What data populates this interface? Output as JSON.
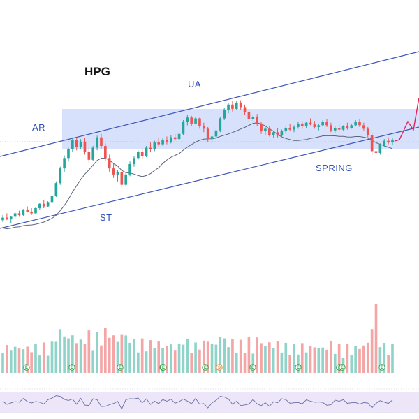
{
  "chart_data": {
    "type": "candlestick",
    "title": "HPG",
    "colors": {
      "up": "#26a69a",
      "down": "#ef5350",
      "up_volume": "#8fd3c9",
      "down_volume": "#f4a5a5",
      "range_box": "#c9d7fb",
      "channel": "#3d55b8",
      "ma": "#5a6478",
      "projection": "#e3245b",
      "oscillator": "#6a6fa0",
      "oscillator_band": "#ece6f8"
    },
    "annotations": [
      {
        "label": "AR"
      },
      {
        "label": "ST"
      },
      {
        "label": "UA"
      },
      {
        "label": "SPRING"
      }
    ],
    "event_markers": [
      "E",
      "E",
      "E",
      "E",
      "E",
      "E",
      "S",
      "E",
      "E",
      "E",
      "E",
      "E",
      "E"
    ],
    "candles": [
      [
        24.0,
        24.6,
        23.8,
        24.3
      ],
      [
        24.3,
        24.8,
        24.0,
        24.1
      ],
      [
        24.1,
        24.5,
        23.7,
        24.4
      ],
      [
        24.4,
        25.0,
        24.2,
        24.8
      ],
      [
        24.8,
        25.1,
        24.4,
        24.6
      ],
      [
        24.6,
        25.3,
        24.5,
        25.2
      ],
      [
        25.2,
        25.6,
        24.9,
        25.0
      ],
      [
        25.0,
        25.4,
        24.6,
        24.8
      ],
      [
        24.8,
        25.5,
        24.7,
        25.4
      ],
      [
        25.4,
        26.0,
        25.2,
        25.9
      ],
      [
        25.9,
        26.3,
        25.4,
        25.6
      ],
      [
        25.6,
        26.2,
        25.5,
        26.1
      ],
      [
        26.1,
        27.0,
        26.0,
        26.8
      ],
      [
        26.8,
        28.5,
        26.7,
        28.3
      ],
      [
        28.3,
        30.2,
        28.1,
        30.0
      ],
      [
        30.0,
        31.5,
        29.6,
        31.2
      ],
      [
        31.2,
        32.4,
        30.8,
        32.2
      ],
      [
        32.2,
        33.6,
        31.9,
        33.3
      ],
      [
        33.3,
        33.6,
        32.1,
        32.5
      ],
      [
        32.5,
        33.4,
        32.2,
        33.1
      ],
      [
        33.1,
        33.5,
        31.6,
        31.9
      ],
      [
        31.9,
        32.4,
        30.6,
        31.0
      ],
      [
        31.0,
        32.6,
        30.9,
        32.4
      ],
      [
        32.4,
        33.8,
        32.1,
        33.6
      ],
      [
        33.6,
        34.0,
        32.3,
        32.6
      ],
      [
        32.6,
        32.9,
        30.8,
        31.2
      ],
      [
        31.2,
        31.6,
        29.6,
        30.0
      ],
      [
        30.0,
        30.6,
        28.9,
        29.3
      ],
      [
        29.3,
        29.8,
        28.5,
        29.6
      ],
      [
        29.6,
        29.9,
        27.8,
        28.1
      ],
      [
        28.1,
        29.5,
        27.9,
        29.3
      ],
      [
        29.3,
        30.8,
        29.1,
        30.5
      ],
      [
        30.5,
        31.4,
        30.2,
        31.2
      ],
      [
        31.2,
        32.1,
        31.0,
        31.9
      ],
      [
        31.9,
        32.3,
        31.1,
        31.4
      ],
      [
        31.4,
        32.6,
        31.3,
        32.4
      ],
      [
        32.4,
        33.0,
        31.9,
        32.2
      ],
      [
        32.2,
        33.2,
        32.0,
        33.0
      ],
      [
        33.0,
        33.6,
        32.5,
        32.8
      ],
      [
        32.8,
        33.5,
        32.6,
        33.3
      ],
      [
        33.3,
        33.7,
        32.8,
        33.1
      ],
      [
        33.1,
        33.9,
        32.9,
        33.6
      ],
      [
        33.6,
        34.0,
        33.2,
        33.4
      ],
      [
        33.4,
        34.2,
        33.3,
        34.0
      ],
      [
        34.0,
        35.6,
        33.9,
        35.4
      ],
      [
        35.4,
        36.2,
        35.0,
        35.9
      ],
      [
        35.9,
        36.1,
        34.9,
        35.2
      ],
      [
        35.2,
        36.0,
        35.1,
        35.8
      ],
      [
        35.8,
        35.9,
        34.6,
        34.9
      ],
      [
        34.9,
        35.3,
        34.2,
        34.6
      ],
      [
        34.6,
        34.8,
        33.1,
        33.4
      ],
      [
        33.4,
        33.9,
        32.9,
        33.7
      ],
      [
        33.7,
        34.6,
        33.5,
        34.4
      ],
      [
        34.4,
        36.0,
        34.2,
        35.8
      ],
      [
        35.8,
        37.0,
        35.6,
        36.8
      ],
      [
        36.8,
        37.6,
        36.4,
        37.4
      ],
      [
        37.4,
        37.8,
        36.6,
        36.9
      ],
      [
        36.9,
        37.8,
        36.8,
        37.6
      ],
      [
        37.6,
        37.9,
        36.8,
        37.1
      ],
      [
        37.1,
        37.4,
        36.2,
        36.5
      ],
      [
        36.5,
        36.7,
        35.4,
        35.7
      ],
      [
        35.7,
        36.2,
        35.5,
        36.0
      ],
      [
        36.0,
        36.3,
        34.9,
        35.2
      ],
      [
        35.2,
        35.4,
        34.0,
        34.3
      ],
      [
        34.3,
        34.8,
        33.9,
        34.6
      ],
      [
        34.6,
        34.9,
        33.7,
        33.9
      ],
      [
        33.9,
        34.4,
        33.5,
        34.2
      ],
      [
        34.2,
        34.7,
        33.6,
        33.8
      ],
      [
        33.8,
        34.5,
        33.7,
        34.3
      ],
      [
        34.3,
        34.9,
        34.0,
        34.7
      ],
      [
        34.7,
        35.2,
        34.3,
        34.5
      ],
      [
        34.5,
        35.0,
        34.2,
        34.8
      ],
      [
        34.8,
        35.4,
        34.6,
        35.2
      ],
      [
        35.2,
        35.5,
        34.6,
        34.9
      ],
      [
        34.9,
        35.4,
        34.7,
        35.3
      ],
      [
        35.3,
        35.8,
        35.0,
        35.1
      ],
      [
        35.1,
        35.5,
        34.6,
        34.8
      ],
      [
        34.8,
        35.2,
        34.4,
        35.0
      ],
      [
        35.0,
        35.6,
        34.9,
        35.4
      ],
      [
        35.4,
        35.7,
        34.8,
        35.0
      ],
      [
        35.0,
        35.3,
        34.2,
        34.4
      ],
      [
        34.4,
        34.9,
        34.1,
        34.7
      ],
      [
        34.7,
        35.1,
        34.3,
        34.5
      ],
      [
        34.5,
        35.0,
        34.4,
        34.9
      ],
      [
        34.9,
        35.3,
        34.5,
        34.7
      ],
      [
        34.7,
        35.2,
        34.6,
        35.0
      ],
      [
        35.0,
        35.6,
        34.9,
        35.4
      ],
      [
        35.4,
        35.7,
        34.8,
        35.0
      ],
      [
        35.0,
        35.3,
        34.4,
        34.6
      ],
      [
        34.6,
        34.8,
        33.6,
        33.9
      ],
      [
        33.9,
        34.1,
        31.5,
        32.0
      ],
      [
        32.0,
        32.6,
        28.6,
        31.8
      ],
      [
        31.8,
        32.9,
        31.6,
        32.7
      ],
      [
        32.7,
        33.4,
        32.5,
        33.2
      ],
      [
        33.2,
        33.6,
        32.8,
        33.0
      ],
      [
        33.0,
        33.5,
        32.7,
        33.3
      ]
    ]
  }
}
